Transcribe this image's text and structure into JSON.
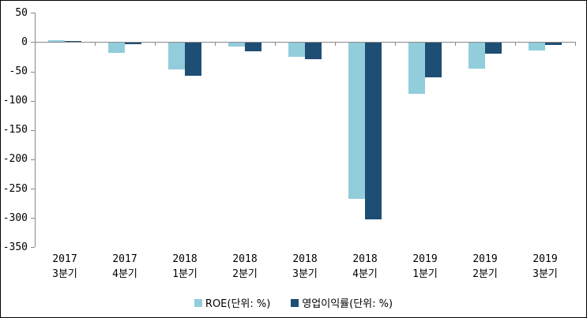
{
  "chart_data": {
    "type": "bar",
    "title": "",
    "xlabel": "",
    "ylabel": "",
    "categories": [
      {
        "year": "2017",
        "quarter": "3분기"
      },
      {
        "year": "2017",
        "quarter": "4분기"
      },
      {
        "year": "2018",
        "quarter": "1분기"
      },
      {
        "year": "2018",
        "quarter": "2분기"
      },
      {
        "year": "2018",
        "quarter": "3분기"
      },
      {
        "year": "2018",
        "quarter": "4분기"
      },
      {
        "year": "2019",
        "quarter": "1분기"
      },
      {
        "year": "2019",
        "quarter": "2분기"
      },
      {
        "year": "2019",
        "quarter": "3분기"
      }
    ],
    "series": [
      {
        "name": "ROE(단위: %)",
        "color": "#92CDDC",
        "values": [
          3,
          -18,
          -47,
          -8,
          -25,
          -268,
          -88,
          -45,
          -14
        ]
      },
      {
        "name": "영업이익률(단위: %)",
        "color": "#1F4E74",
        "values": [
          2,
          -4,
          -58,
          -16,
          -29,
          -303,
          -60,
          -20,
          -5
        ]
      }
    ],
    "y_ticks": [
      50,
      0,
      -50,
      -100,
      -150,
      -200,
      -250,
      -300,
      -350
    ],
    "ylim": [
      -350,
      50
    ],
    "grid": false,
    "legend_position": "bottom",
    "colors": {
      "axis": "#898989",
      "text": "#000000",
      "background": "#FFFFFF",
      "border": "#000000"
    }
  }
}
